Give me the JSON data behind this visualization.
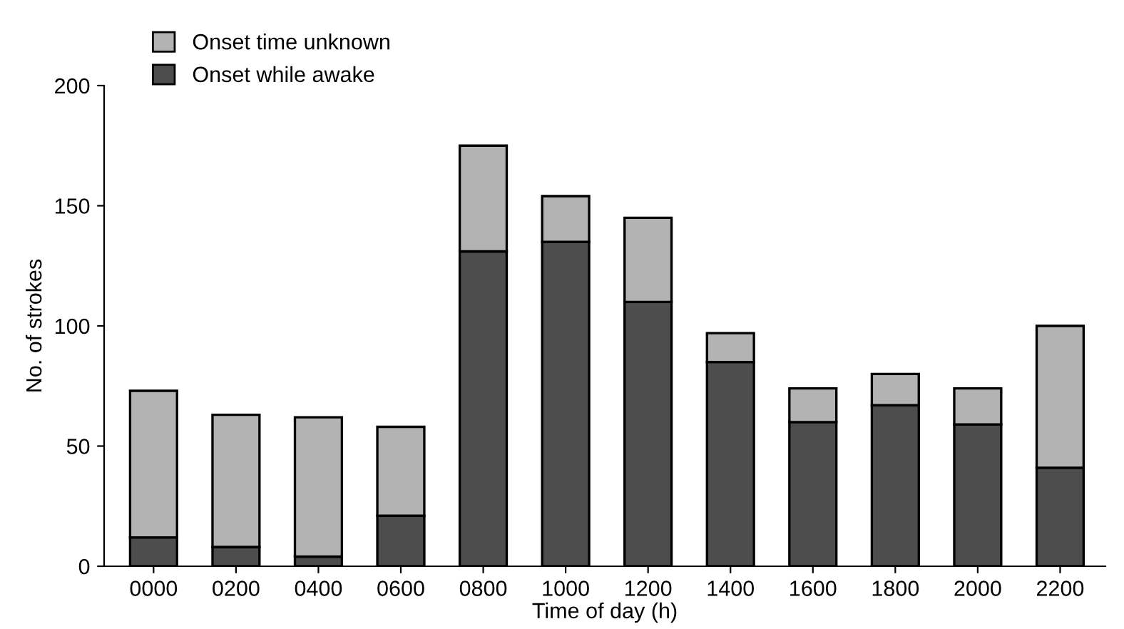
{
  "chart_data": {
    "type": "bar",
    "stacked": true,
    "xlabel": "Time of day (h)",
    "ylabel": "No. of strokes",
    "categories": [
      "0000",
      "0200",
      "0400",
      "0600",
      "0800",
      "1000",
      "1200",
      "1400",
      "1600",
      "1800",
      "2000",
      "2200"
    ],
    "series": [
      {
        "name": "Onset while awake",
        "color": "#4d4d4d",
        "values": [
          12,
          8,
          4,
          21,
          131,
          135,
          110,
          85,
          60,
          67,
          59,
          41
        ]
      },
      {
        "name": "Onset time unknown",
        "color": "#b3b3b3",
        "values": [
          61,
          55,
          58,
          37,
          44,
          19,
          35,
          12,
          14,
          13,
          15,
          59
        ]
      }
    ],
    "ylim": [
      0,
      200
    ],
    "yticks": [
      0,
      50,
      100,
      150,
      200
    ],
    "grid": false,
    "legend": "top left"
  }
}
